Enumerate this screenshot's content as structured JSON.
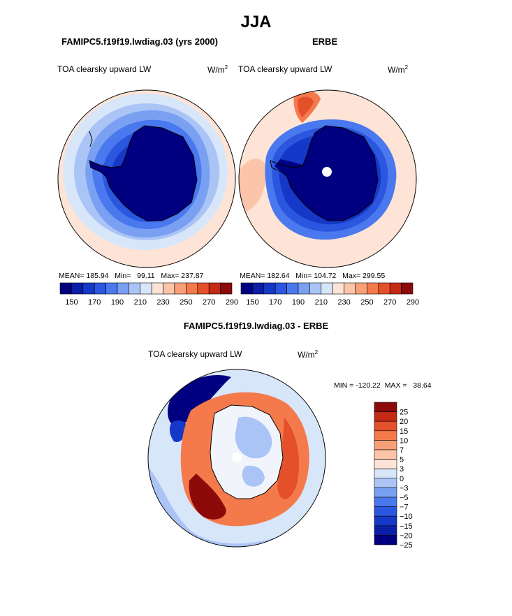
{
  "header": {
    "season": "JJA"
  },
  "panels": {
    "model": {
      "case_title": "FAMIPC5.f19f19.lwdiag.03 (yrs 2000)",
      "variable": "TOA clearsky upward LW",
      "units_base": "W/m",
      "units_exp": "2",
      "mean_label": "MEAN=",
      "mean": "185.94",
      "min_label": "Min=",
      "min": "99.11",
      "max_label": "Max=",
      "max": "237.87"
    },
    "obs": {
      "case_title": "ERBE",
      "variable": "TOA clearsky upward LW",
      "units_base": "W/m",
      "units_exp": "2",
      "mean_label": "MEAN=",
      "mean": "182.64",
      "min_label": "Min=",
      "min": "104.72",
      "max_label": "Max=",
      "max": "299.55"
    },
    "diff": {
      "case_title": "FAMIPC5.f19f19.lwdiag.03 - ERBE",
      "variable": "TOA clearsky upward LW",
      "units_base": "W/m",
      "units_exp": "2",
      "min_label": "MIN =",
      "min": "-120.22",
      "max_label": "MAX =",
      "max": "38.64"
    }
  },
  "chart_data": [
    {
      "type": "heatmap",
      "title": "FAMIPC5.f19f19.lwdiag.03 (yrs 2000)",
      "projection": "south-polar-stereographic",
      "variable": "TOA clearsky upward LW",
      "units": "W/m^2",
      "stats": {
        "mean": 185.94,
        "min": 99.11,
        "max": 237.87
      },
      "colorbar_ticks": [
        150,
        170,
        190,
        210,
        230,
        250,
        270,
        290
      ],
      "contour_levels": [
        150,
        160,
        170,
        180,
        190,
        200,
        210,
        220,
        230,
        240,
        250,
        260,
        270,
        280,
        290
      ]
    },
    {
      "type": "heatmap",
      "title": "ERBE",
      "projection": "south-polar-stereographic",
      "variable": "TOA clearsky upward LW",
      "units": "W/m^2",
      "stats": {
        "mean": 182.64,
        "min": 104.72,
        "max": 299.55
      },
      "colorbar_ticks": [
        150,
        170,
        190,
        210,
        230,
        250,
        270,
        290
      ],
      "contour_levels": [
        150,
        160,
        170,
        180,
        190,
        200,
        210,
        220,
        230,
        240,
        250,
        260,
        270,
        280,
        290
      ]
    },
    {
      "type": "heatmap",
      "title": "FAMIPC5.f19f19.lwdiag.03 - ERBE",
      "projection": "south-polar-stereographic",
      "variable": "TOA clearsky upward LW",
      "units": "W/m^2",
      "stats": {
        "min": -120.22,
        "max": 38.64
      },
      "colorbar_ticks": [
        "25",
        "20",
        "15",
        "10",
        "7",
        "5",
        "3",
        "0",
        "−3",
        "−5",
        "−7",
        "−10",
        "−15",
        "−20",
        "−25"
      ],
      "contour_levels": [
        -25,
        -20,
        -15,
        -10,
        -7,
        -5,
        -3,
        0,
        3,
        5,
        7,
        10,
        15,
        20,
        25
      ]
    }
  ],
  "palettes": {
    "abs": [
      "#000080",
      "#0a1ea8",
      "#1638c8",
      "#2a56e0",
      "#4a78ee",
      "#7aa0f2",
      "#aac4f6",
      "#d8e6fa",
      "#fde4d6",
      "#fcc4a8",
      "#f8a078",
      "#f47a4c",
      "#e4502a",
      "#c42a14",
      "#8c0a0a"
    ],
    "diff": [
      "#000080",
      "#0a1ea8",
      "#1638c8",
      "#2a56e0",
      "#4a78ee",
      "#7aa0f2",
      "#aac4f6",
      "#d8e6fa",
      "#fde4d6",
      "#fcc4a8",
      "#f8a078",
      "#f47a4c",
      "#e4502a",
      "#c42a14",
      "#8c0a0a"
    ]
  }
}
